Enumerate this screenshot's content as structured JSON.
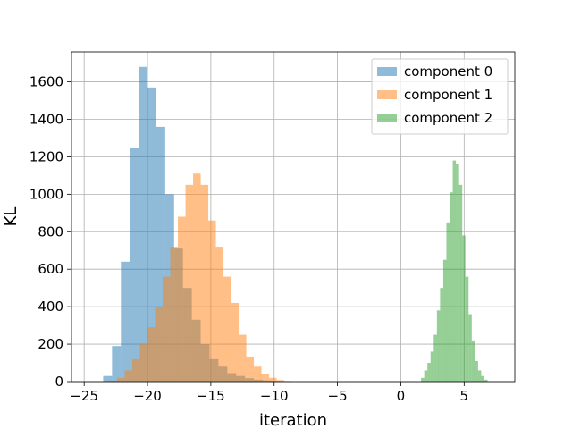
{
  "chart_data": {
    "type": "bar",
    "subtype": "histogram-overlay",
    "title": "",
    "xlabel": "iteration",
    "ylabel": "KL",
    "xlim": [
      -26,
      9
    ],
    "ylim": [
      0,
      1760
    ],
    "xticks": [
      -25,
      -20,
      -15,
      -10,
      -5,
      0,
      5
    ],
    "xtick_labels": [
      "−25",
      "−20",
      "−15",
      "−10",
      "−5",
      "0",
      "5"
    ],
    "yticks": [
      0,
      200,
      400,
      600,
      800,
      1000,
      1200,
      1400,
      1600
    ],
    "ytick_labels": [
      "0",
      "200",
      "400",
      "600",
      "800",
      "1000",
      "1200",
      "1400",
      "1600"
    ],
    "grid": true,
    "legend_position": "top-right",
    "series": [
      {
        "name": "component 0",
        "color": "#1f77b4",
        "opacity": 0.5,
        "bin_edges": [
          -23.5,
          -22.8,
          -22.1,
          -21.4,
          -20.7,
          -20.0,
          -19.3,
          -18.6,
          -17.9,
          -17.2,
          -16.5,
          -15.8,
          -15.1,
          -14.4,
          -13.7,
          -13.0,
          -12.3,
          -11.6,
          -10.9,
          -10.2,
          -9.5,
          -8.8,
          -8.1
        ],
        "counts": [
          30,
          190,
          640,
          1245,
          1680,
          1570,
          1360,
          1000,
          710,
          500,
          330,
          200,
          120,
          80,
          45,
          30,
          18,
          10,
          6,
          4,
          2,
          1
        ]
      },
      {
        "name": "component 1",
        "color": "#ff7f0e",
        "opacity": 0.5,
        "bin_edges": [
          -23.0,
          -22.4,
          -21.8,
          -21.2,
          -20.6,
          -20.0,
          -19.4,
          -18.8,
          -18.2,
          -17.6,
          -17.0,
          -16.4,
          -15.8,
          -15.2,
          -14.6,
          -14.0,
          -13.4,
          -12.8,
          -12.2,
          -11.6,
          -11.0,
          -10.4,
          -9.8,
          -9.2,
          -8.6
        ],
        "counts": [
          5,
          20,
          60,
          120,
          200,
          290,
          400,
          560,
          720,
          880,
          1050,
          1110,
          1050,
          860,
          720,
          560,
          420,
          250,
          130,
          80,
          40,
          20,
          8,
          3
        ]
      },
      {
        "name": "component 2",
        "color": "#2ca02c",
        "opacity": 0.5,
        "bin_edges": [
          1.6,
          1.85,
          2.1,
          2.35,
          2.6,
          2.85,
          3.1,
          3.35,
          3.6,
          3.85,
          4.1,
          4.35,
          4.6,
          4.85,
          5.1,
          5.35,
          5.6,
          5.85,
          6.1,
          6.35,
          6.6,
          6.85
        ],
        "counts": [
          20,
          60,
          100,
          160,
          250,
          380,
          500,
          650,
          850,
          1010,
          1180,
          1160,
          1050,
          780,
          560,
          360,
          220,
          110,
          60,
          30,
          10
        ]
      }
    ]
  }
}
